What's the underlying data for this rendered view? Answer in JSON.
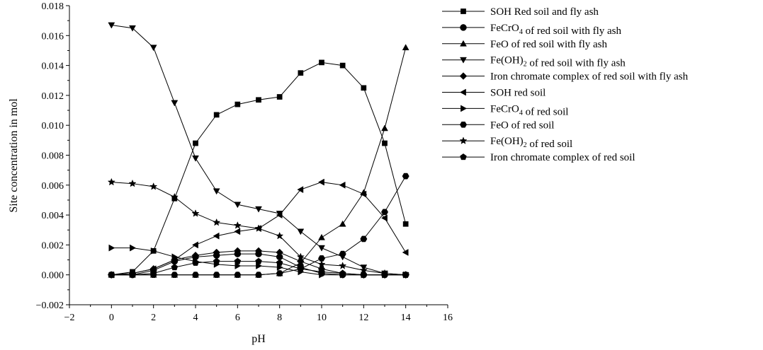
{
  "chart_data": {
    "type": "line",
    "title": "",
    "xlabel": "pH",
    "ylabel": "Site concentration in mol",
    "xlim": [
      -2,
      16
    ],
    "ylim": [
      -0.002,
      0.018
    ],
    "xticks": [
      "−2",
      "0",
      "2",
      "4",
      "6",
      "8",
      "10",
      "12",
      "14",
      "16"
    ],
    "yticks": [
      "−0.002",
      "0.000",
      "0.002",
      "0.004",
      "0.006",
      "0.008",
      "0.010",
      "0.012",
      "0.014",
      "0.016",
      "0.018"
    ],
    "legend_position": "right",
    "grid": false,
    "x": [
      0,
      1,
      2,
      3,
      4,
      5,
      6,
      7,
      8,
      9,
      10,
      11,
      12,
      13,
      14
    ],
    "series": [
      {
        "name": "SOH  Red soil and fly ash",
        "marker": "square",
        "values": [
          0.0,
          0.0002,
          0.0016,
          0.0051,
          0.0088,
          0.0107,
          0.0114,
          0.0117,
          0.0119,
          0.0135,
          0.0142,
          0.014,
          0.0125,
          0.0088,
          0.0034
        ]
      },
      {
        "name": "FeCrO4  of red soil with fly ash",
        "marker": "circle",
        "values": [
          0.0,
          0.0,
          0.0003,
          0.0009,
          0.0012,
          0.0013,
          0.0014,
          0.0014,
          0.0012,
          0.0005,
          0.0001,
          0.0,
          0.0,
          0.0,
          0.0
        ]
      },
      {
        "name": "FeO of red soil with fly ash",
        "marker": "triangle-up",
        "values": [
          0.0,
          0.0,
          0.0,
          0.0,
          0.0,
          0.0,
          0.0,
          0.0,
          0.0001,
          0.0008,
          0.0025,
          0.0034,
          0.0055,
          0.0098,
          0.0152
        ]
      },
      {
        "name": "Fe(OH)2 of red soil with fly ash",
        "marker": "triangle-down",
        "values": [
          0.0167,
          0.0165,
          0.0152,
          0.0115,
          0.0078,
          0.0056,
          0.0047,
          0.0044,
          0.0041,
          0.0029,
          0.0018,
          0.0012,
          0.0005,
          0.0001,
          0.0
        ]
      },
      {
        "name": "Iron chromate complex of red soil with fly ash",
        "marker": "diamond",
        "values": [
          0.0,
          0.0001,
          0.0004,
          0.001,
          0.0013,
          0.0015,
          0.0016,
          0.0016,
          0.0015,
          0.0009,
          0.0004,
          0.0001,
          0.0,
          0.0,
          0.0
        ]
      },
      {
        "name": "SOH  red soil",
        "marker": "triangle-left",
        "values": [
          0.0,
          0.0001,
          0.0004,
          0.001,
          0.002,
          0.0026,
          0.0029,
          0.0031,
          0.004,
          0.0057,
          0.0062,
          0.006,
          0.0054,
          0.0038,
          0.0015
        ]
      },
      {
        "name": "FeCrO4 of red soil",
        "marker": "triangle-right",
        "values": [
          0.0018,
          0.0018,
          0.0016,
          0.0012,
          0.0009,
          0.0007,
          0.0006,
          0.0006,
          0.0005,
          0.0002,
          0.0,
          0.0,
          0.0,
          0.0,
          0.0
        ]
      },
      {
        "name": "FeO of red soil",
        "marker": "hexagon",
        "values": [
          0.0,
          0.0,
          0.0,
          0.0,
          0.0,
          0.0,
          0.0,
          0.0,
          0.0001,
          0.0004,
          0.0011,
          0.0014,
          0.0024,
          0.0042,
          0.0066
        ]
      },
      {
        "name": "Fe(OH)2 of red soil",
        "marker": "star",
        "values": [
          0.0062,
          0.0061,
          0.0059,
          0.0052,
          0.0041,
          0.0035,
          0.0033,
          0.0031,
          0.0026,
          0.0012,
          0.0007,
          0.0006,
          0.0003,
          0.0001,
          0.0
        ]
      },
      {
        "name": "Iron chromate complex of red soil",
        "marker": "pentagon",
        "values": [
          0.0,
          0.0,
          0.0001,
          0.0005,
          0.0008,
          0.0009,
          0.0009,
          0.0009,
          0.0008,
          0.0004,
          0.0002,
          0.0001,
          0.0,
          0.0,
          0.0
        ]
      }
    ]
  }
}
